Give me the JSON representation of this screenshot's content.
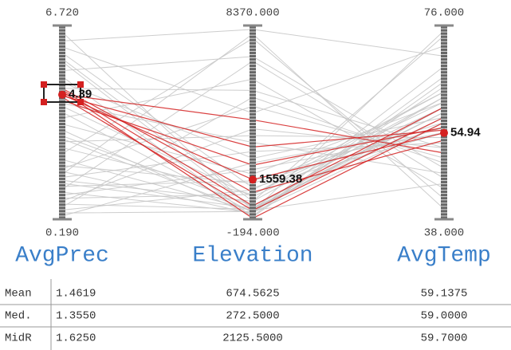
{
  "chart_data": {
    "type": "parallel",
    "axes": [
      {
        "name": "AvgPrec",
        "max": {
          "value": 6.72,
          "label": "6.720"
        },
        "min": {
          "value": 0.19,
          "label": "0.190"
        }
      },
      {
        "name": "Elevation",
        "max": {
          "value": 8370,
          "label": "8370.000"
        },
        "min": {
          "value": -194,
          "label": "-194.000"
        }
      },
      {
        "name": "AvgTemp",
        "max": {
          "value": 76,
          "label": "76.000"
        },
        "min": {
          "value": 38,
          "label": "38.000"
        }
      }
    ],
    "selected": [
      4.39,
      1559.38,
      54.94
    ],
    "background_color": "#c8c8c8",
    "highlight_color": "#d42020",
    "highlighted_lines": [
      [
        4.39,
        1559.38,
        54.94
      ],
      [
        4.5,
        -150,
        57
      ],
      [
        4.3,
        200,
        58
      ],
      [
        4.6,
        1000,
        53.5
      ],
      [
        4.2,
        2200,
        56
      ],
      [
        4.4,
        4200,
        51
      ],
      [
        4.35,
        3000,
        55.5
      ],
      [
        4.55,
        400,
        60
      ]
    ],
    "background_lines": [
      [
        6.5,
        200,
        45
      ],
      [
        6.2,
        8200,
        70
      ],
      [
        5.8,
        1200,
        55
      ],
      [
        5.5,
        300,
        62
      ],
      [
        5.2,
        7000,
        48
      ],
      [
        5.0,
        -100,
        65
      ],
      [
        4.8,
        2500,
        58
      ],
      [
        4.6,
        5500,
        52
      ],
      [
        4.0,
        800,
        60
      ],
      [
        3.8,
        100,
        57
      ],
      [
        3.6,
        6000,
        44
      ],
      [
        3.4,
        1800,
        61
      ],
      [
        3.2,
        -50,
        66
      ],
      [
        3.0,
        400,
        59
      ],
      [
        2.8,
        3500,
        54
      ],
      [
        2.6,
        900,
        63
      ],
      [
        2.4,
        7800,
        42
      ],
      [
        2.2,
        200,
        60
      ],
      [
        2.0,
        1400,
        56
      ],
      [
        1.9,
        4800,
        50
      ],
      [
        1.8,
        50,
        68
      ],
      [
        1.6,
        2800,
        53
      ],
      [
        1.5,
        600,
        62
      ],
      [
        1.4,
        300,
        58
      ],
      [
        1.3,
        1500,
        57
      ],
      [
        1.2,
        6800,
        46
      ],
      [
        1.1,
        100,
        64
      ],
      [
        1.0,
        2000,
        55
      ],
      [
        0.9,
        900,
        61
      ],
      [
        0.8,
        3800,
        52
      ],
      [
        0.7,
        250,
        59
      ],
      [
        0.6,
        5200,
        49
      ],
      [
        0.5,
        1100,
        63
      ],
      [
        0.4,
        150,
        60
      ],
      [
        0.3,
        2300,
        56
      ],
      [
        6.0,
        4500,
        72
      ],
      [
        5.6,
        600,
        74
      ],
      [
        1.7,
        8000,
        40
      ],
      [
        2.9,
        150,
        75
      ],
      [
        4.1,
        3200,
        47
      ]
    ],
    "table": {
      "rows": [
        {
          "label": "Mean",
          "cells": [
            "1.4619",
            "674.5625",
            "59.1375"
          ]
        },
        {
          "label": "Med.",
          "cells": [
            "1.3550",
            "272.5000",
            "59.0000"
          ]
        },
        {
          "label": "MidR",
          "cells": [
            "1.6250",
            "2125.5000",
            "59.7000"
          ]
        }
      ]
    }
  }
}
